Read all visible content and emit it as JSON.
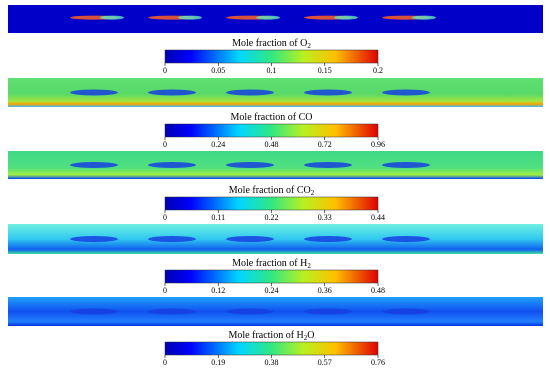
{
  "panels": [
    {
      "title": {
        "text": "Mole fraction of O",
        "sub": "2"
      },
      "lim": [
        0,
        0.2
      ],
      "ticks": [
        0,
        0.05,
        0.1,
        0.15,
        0.2
      ]
    },
    {
      "title": {
        "text": "Mole fraction of CO",
        "sub": null
      },
      "lim": [
        0,
        0.96
      ],
      "ticks": [
        0,
        0.24,
        0.48,
        0.72,
        0.96
      ]
    },
    {
      "title": {
        "text": "Mole fraction of CO",
        "sub": "2"
      },
      "lim": [
        0,
        0.44
      ],
      "ticks": [
        0,
        0.11,
        0.22,
        0.33,
        0.44
      ]
    },
    {
      "title": {
        "text": "Mole fraction of H",
        "sub": "2"
      },
      "lim": [
        0,
        0.48
      ],
      "ticks": [
        0,
        0.12,
        0.24,
        0.36,
        0.48
      ]
    },
    {
      "title": {
        "text": "Mole fraction of H",
        "sub": "2",
        "tail": "O"
      },
      "lim": [
        0,
        0.76
      ],
      "ticks": [
        0,
        0.19,
        0.38,
        0.57,
        0.76
      ]
    }
  ]
}
